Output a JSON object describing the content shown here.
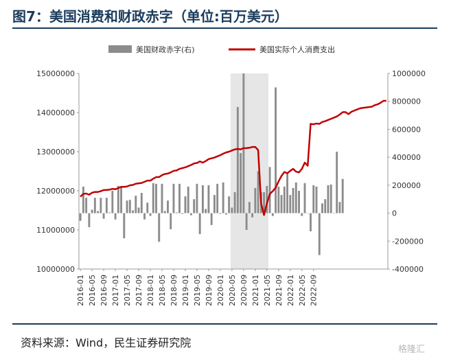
{
  "title": "图7：美国消费和财政赤字（单位:百万美元）",
  "source": "资料来源：Wind，民生证券研究院",
  "watermark": "格隆汇",
  "colors": {
    "bar": "#8c8c8c",
    "line": "#c00000",
    "shade": "#e6e6e6",
    "title": "#1a3b5c"
  },
  "chart_data": {
    "type": "bar+line",
    "legend": [
      {
        "name": "美国财政赤字(右)",
        "kind": "bar"
      },
      {
        "name": "美国实际个人消费支出",
        "kind": "line"
      }
    ],
    "legend_position": "top",
    "x_tick_labels": [
      "2016-01",
      "2016-05",
      "2016-09",
      "2017-01",
      "2017-05",
      "2017-09",
      "2018-01",
      "2018-05",
      "2018-09",
      "2019-01",
      "2019-05",
      "2019-09",
      "2020-01",
      "2020-05",
      "2020-09",
      "2021-01",
      "2021-05",
      "2021-09",
      "2022-01",
      "2022-05",
      "2022-09"
    ],
    "x_tick_start_index": 0,
    "x_tick_step": 4,
    "shaded_range": [
      "2020-05",
      "2021-05"
    ],
    "left_axis": {
      "min": 10000000,
      "max": 15000000,
      "ticks": [
        "10000000",
        "11000000",
        "12000000",
        "13000000",
        "14000000",
        "15000000"
      ]
    },
    "right_axis": {
      "min": -400000,
      "max": 1000000,
      "ticks": [
        "-400000",
        "-200000",
        "0",
        "200000",
        "400000",
        "600000",
        "800000",
        "1000000"
      ]
    },
    "grid": false,
    "series": [
      {
        "name": "美国财政赤字(右)",
        "axis": "right",
        "type": "bar",
        "values": [
          -55000,
          190000,
          110000,
          -100000,
          25000,
          110000,
          15000,
          110000,
          -40000,
          110000,
          5000,
          160000,
          -45000,
          195000,
          190000,
          -180000,
          90000,
          95000,
          20000,
          125000,
          40000,
          145000,
          -45000,
          75000,
          -20000,
          215000,
          210000,
          -205000,
          210000,
          15000,
          90000,
          -115000,
          210000,
          5000,
          210000,
          -5000,
          120000,
          190000,
          -15000,
          100000,
          210000,
          -150000,
          200000,
          30000,
          200000,
          -85000,
          130000,
          210000,
          -5000,
          220000,
          -10000,
          120000,
          40000,
          150000,
          760000,
          430000,
          1000000,
          -120000,
          80000,
          -30000,
          180000,
          300000,
          150000,
          150000,
          195000,
          330000,
          -20000,
          900000,
          190000,
          130000,
          190000,
          290000,
          130000,
          180000,
          220000,
          160000,
          -20000,
          215000,
          0,
          -130000,
          200000,
          190000,
          -300000,
          70000,
          100000,
          200000,
          205000,
          0,
          440000,
          80000,
          245000
        ]
      },
      {
        "name": "美国实际个人消费支出",
        "axis": "left",
        "type": "line",
        "values": [
          11850000,
          11920000,
          11930000,
          11900000,
          11950000,
          11970000,
          11970000,
          11990000,
          12020000,
          12020000,
          12030000,
          12050000,
          12040000,
          12070000,
          12100000,
          12100000,
          12110000,
          12140000,
          12150000,
          12180000,
          12190000,
          12200000,
          12230000,
          12260000,
          12260000,
          12310000,
          12350000,
          12350000,
          12400000,
          12430000,
          12440000,
          12470000,
          12510000,
          12520000,
          12560000,
          12580000,
          12600000,
          12630000,
          12660000,
          12700000,
          12710000,
          12750000,
          12720000,
          12760000,
          12810000,
          12830000,
          12850000,
          12880000,
          12910000,
          12950000,
          12980000,
          13000000,
          13030000,
          13060000,
          13070000,
          13060000,
          13090000,
          13090000,
          13100000,
          13120000,
          13120000,
          13040000,
          11680000,
          11380000,
          11680000,
          11920000,
          11990000,
          12080000,
          12240000,
          12380000,
          12480000,
          12450000,
          12510000,
          12560000,
          12490000,
          12470000,
          12560000,
          12720000,
          12640000,
          13710000,
          13700000,
          13720000,
          13710000,
          13760000,
          13780000,
          13810000,
          13840000,
          13870000,
          13900000,
          13950000,
          14010000,
          14010000,
          13960000,
          14020000,
          14050000,
          14080000,
          14110000,
          14120000,
          14130000,
          14140000,
          14150000,
          14190000,
          14210000,
          14250000,
          14300000,
          14300000
        ]
      }
    ]
  }
}
